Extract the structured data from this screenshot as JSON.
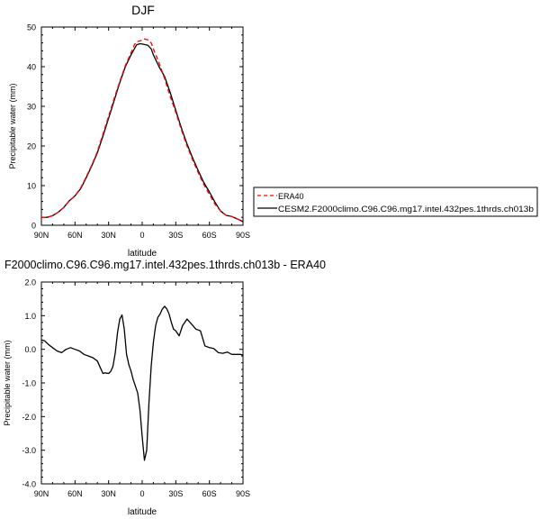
{
  "chart_data": [
    {
      "type": "line",
      "title": "DJF",
      "xlabel": "latitude",
      "ylabel": "Precipitable water (mm)",
      "xlim": [
        90,
        -90
      ],
      "ylim": [
        0,
        50
      ],
      "x_ticks": [
        90,
        60,
        30,
        0,
        -30,
        -60,
        -90
      ],
      "x_tick_labels": [
        "90N",
        "60N",
        "30N",
        "0",
        "30S",
        "60S",
        "90S"
      ],
      "y_ticks": [
        0,
        10,
        20,
        30,
        40,
        50
      ],
      "y_tick_labels": [
        "0",
        "10",
        "20",
        "30",
        "40",
        "50"
      ],
      "legend_position": "right",
      "series": [
        {
          "name": "ERA40",
          "color": "#ff0000",
          "dash": "dashed",
          "x": [
            90,
            85,
            80,
            75,
            70,
            65,
            60,
            55,
            50,
            45,
            40,
            35,
            30,
            25,
            20,
            15,
            10,
            7,
            5,
            2,
            0,
            -2,
            -5,
            -8,
            -10,
            -15,
            -20,
            -25,
            -30,
            -35,
            -40,
            -45,
            -50,
            -55,
            -60,
            -65,
            -70,
            -75,
            -80,
            -85,
            -90
          ],
          "y": [
            2,
            2,
            2.4,
            3.3,
            4.5,
            6.2,
            7.4,
            9.4,
            12.2,
            15.2,
            18.6,
            23.0,
            27.5,
            32.0,
            36.3,
            40.3,
            43.5,
            45.5,
            46.3,
            46.5,
            46.7,
            47.0,
            46.8,
            46.0,
            44.5,
            41.0,
            37.0,
            32.5,
            28.5,
            24.0,
            20.0,
            16.5,
            13.3,
            10.3,
            7.8,
            5.3,
            3.6,
            2.5,
            2.2,
            1.6,
            0.9
          ]
        },
        {
          "name": "CESM2.F2000climo.C96.C96.mg17.intel.432pes.1thrds.ch013b",
          "color": "#000000",
          "dash": "solid",
          "x": [
            90,
            85,
            80,
            75,
            70,
            65,
            60,
            55,
            50,
            45,
            40,
            35,
            30,
            25,
            20,
            15,
            10,
            7,
            5,
            2,
            0,
            -2,
            -5,
            -8,
            -10,
            -15,
            -20,
            -25,
            -30,
            -35,
            -40,
            -45,
            -50,
            -55,
            -60,
            -65,
            -70,
            -75,
            -80,
            -85,
            -90
          ],
          "y": [
            2,
            2,
            2.4,
            3.3,
            4.5,
            6.2,
            7.4,
            9.2,
            12.0,
            15.0,
            18.3,
            22.5,
            27.0,
            31.5,
            36.0,
            40.0,
            43.0,
            44.5,
            45.5,
            45.8,
            45.7,
            45.6,
            45.4,
            44.5,
            43.0,
            40.0,
            37.5,
            33.5,
            29.0,
            24.5,
            20.5,
            17.0,
            13.8,
            10.8,
            8.4,
            5.8,
            3.6,
            2.5,
            2.2,
            1.6,
            0.9
          ]
        }
      ]
    },
    {
      "type": "line",
      "title": "F2000climo.C96.C96.mg17.intel.432pes.1thrds.ch013b - ERA40",
      "xlabel": "latitude",
      "ylabel": "Precipitable water (mm)",
      "xlim": [
        90,
        -90
      ],
      "ylim": [
        -4.0,
        2.0
      ],
      "x_ticks": [
        90,
        60,
        30,
        0,
        -30,
        -60,
        -90
      ],
      "x_tick_labels": [
        "90N",
        "60N",
        "30N",
        "0",
        "30S",
        "60S",
        "90S"
      ],
      "y_ticks": [
        -4,
        -3,
        -2,
        -1,
        0,
        1,
        2
      ],
      "y_tick_labels": [
        "-4.0",
        "-3.0",
        "-2.0",
        "-1.0",
        "0.0",
        "1.0",
        "2.0"
      ],
      "series": [
        {
          "color": "#000000",
          "dash": "solid",
          "x": [
            90,
            87,
            84,
            80,
            76,
            72,
            68,
            64,
            60,
            56,
            52,
            48,
            44,
            40,
            38,
            35,
            33,
            30,
            28,
            26,
            24,
            22,
            20,
            18,
            16,
            14,
            12,
            10,
            8,
            6,
            4,
            2,
            0,
            -2,
            -4,
            -6,
            -8,
            -10,
            -12,
            -14,
            -16,
            -18,
            -20,
            -22,
            -24,
            -26,
            -28,
            -30,
            -33,
            -36,
            -40,
            -44,
            -48,
            -52,
            -56,
            -60,
            -64,
            -68,
            -72,
            -76,
            -80,
            -84,
            -88,
            -90
          ],
          "y": [
            0.28,
            0.25,
            0.15,
            0.05,
            -0.05,
            -0.1,
            0.0,
            0.05,
            0.0,
            -0.05,
            -0.15,
            -0.2,
            -0.25,
            -0.35,
            -0.5,
            -0.72,
            -0.7,
            -0.72,
            -0.65,
            -0.5,
            -0.1,
            0.5,
            0.9,
            1.02,
            0.6,
            -0.15,
            -0.45,
            -0.65,
            -0.9,
            -1.1,
            -1.3,
            -1.8,
            -2.6,
            -3.3,
            -3.0,
            -1.6,
            -0.5,
            0.2,
            0.7,
            0.95,
            1.05,
            1.2,
            1.28,
            1.2,
            1.05,
            0.8,
            0.6,
            0.55,
            0.4,
            0.7,
            0.9,
            0.75,
            0.6,
            0.55,
            0.1,
            0.05,
            0.02,
            -0.1,
            -0.12,
            -0.08,
            -0.15,
            -0.15,
            -0.15,
            -0.18
          ]
        }
      ]
    }
  ]
}
